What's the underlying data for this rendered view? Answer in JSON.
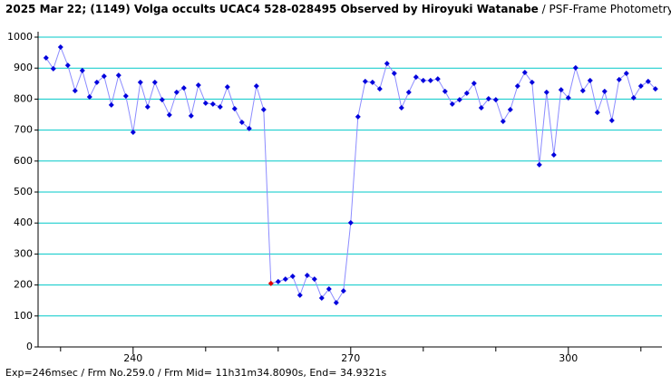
{
  "chart_data": {
    "type": "line",
    "title": "2025 Mar 22; (1149) Volga occults UCAC4 528-028495 Observed by Hiroyuki Watanabe",
    "subtitle": " / PSF-Frame Photometry /",
    "footer": "Exp=246msec / Frm No.259.0 / Frm Mid= 11h31m34.8090s, End= 34.9321s",
    "x": [
      228,
      229,
      230,
      231,
      232,
      233,
      234,
      235,
      236,
      237,
      238,
      239,
      240,
      241,
      242,
      243,
      244,
      245,
      246,
      247,
      248,
      249,
      250,
      251,
      252,
      253,
      254,
      255,
      256,
      257,
      258,
      259,
      260,
      261,
      262,
      263,
      264,
      265,
      266,
      267,
      268,
      269,
      270,
      271,
      272,
      273,
      274,
      275,
      276,
      277,
      278,
      279,
      280,
      281,
      282,
      283,
      284,
      285,
      286,
      287,
      288,
      289,
      290,
      291,
      292,
      293,
      294,
      295,
      296,
      297,
      298,
      299,
      300,
      301,
      302,
      303,
      304,
      305,
      306,
      307,
      308,
      309,
      310,
      311,
      312
    ],
    "series": [
      {
        "name": "Volga",
        "color": "#0000dd",
        "line_color": "#8c8cff",
        "values": [
          933,
          898,
          968,
          909,
          827,
          892,
          807,
          854,
          874,
          781,
          877,
          810,
          693,
          854,
          775,
          854,
          798,
          749,
          822,
          836,
          746,
          845,
          787,
          784,
          775,
          839,
          769,
          725,
          705,
          842,
          766,
          205,
          211,
          219,
          228,
          167,
          231,
          219,
          158,
          187,
          143,
          181,
          401,
          743,
          857,
          854,
          833,
          915,
          883,
          772,
          822,
          871,
          860,
          860,
          865,
          825,
          784,
          798,
          819,
          851,
          772,
          801,
          798,
          728,
          766,
          842,
          886,
          854,
          588,
          822,
          620,
          830,
          804,
          901,
          827,
          860,
          757,
          825,
          731,
          863,
          883,
          804,
          842,
          857,
          833
        ]
      }
    ],
    "highlight_x": 259,
    "highlight_color": "#e00000",
    "xlim": [
      226.9,
      312.9
    ],
    "xticks": [
      240,
      270,
      300
    ],
    "xminor_ticks": [
      230,
      250,
      260,
      280,
      290,
      310
    ],
    "ylim": [
      0,
      1000
    ],
    "yticks": [
      0,
      100,
      200,
      300,
      400,
      500,
      600,
      700,
      800,
      900,
      1000
    ],
    "grid": true,
    "grid_color": "#00c8c8"
  }
}
